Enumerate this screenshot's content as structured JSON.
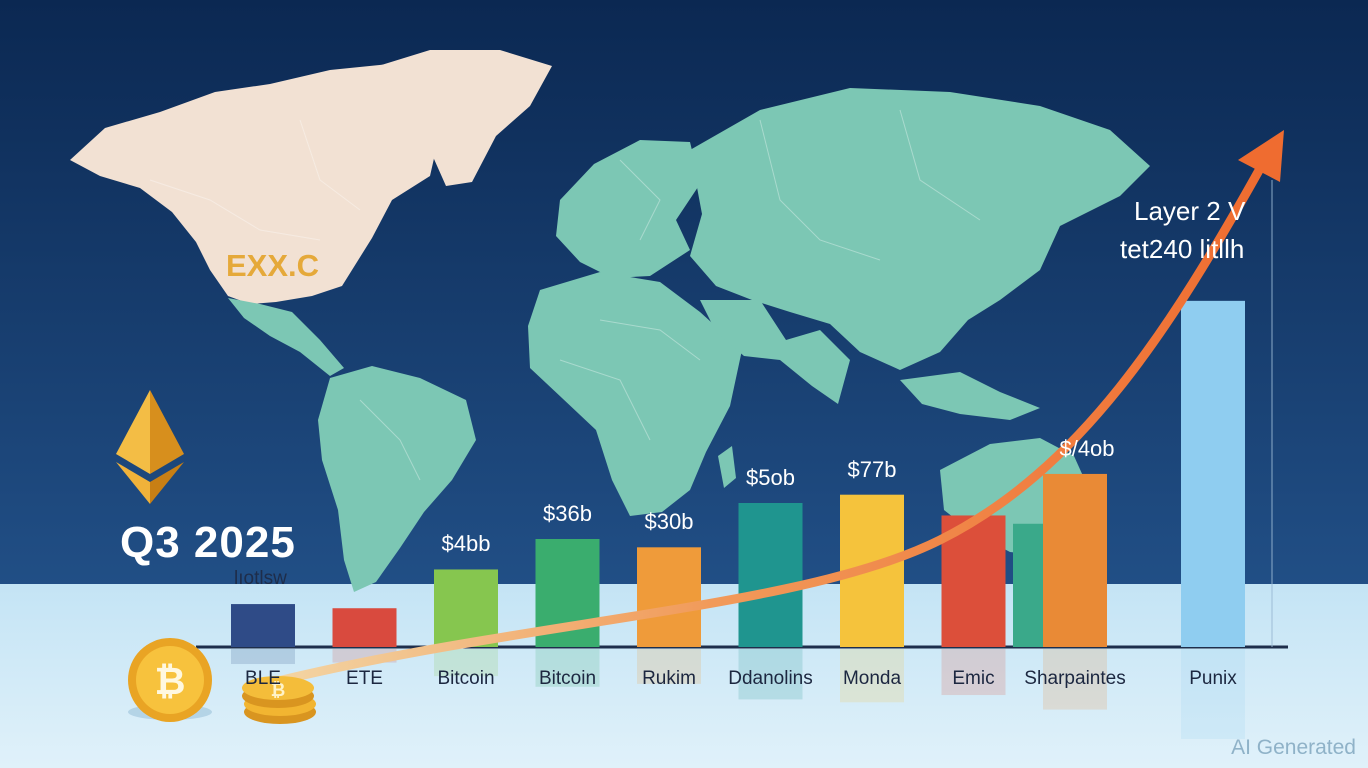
{
  "period": "Q3 2025",
  "period_sub": "lıotlsw",
  "map_label": "EXX.C",
  "annotation": [
    "Layer 2 V",
    "tet240 litllh"
  ],
  "watermark": "AI Generated",
  "colors": {
    "sky_top": "#0d2c58",
    "sky_bottom": "#204f85",
    "floor": "#cfe9f7",
    "land_americas": "#f1e0d2",
    "land_world": "#7cc7b4",
    "trend_arrow": "#f07a3c",
    "axis": "#1e2e4b",
    "coin": "#f2b531"
  },
  "icons": [
    "ethereum-icon",
    "bitcoin-coin-icon",
    "coin-stack-icon",
    "trend-arrow-icon",
    "world-map"
  ],
  "chart_data": {
    "type": "bar",
    "categories": [
      "BLE",
      "ETE",
      "Bitcoin",
      "Bitcoin",
      "Rukim",
      "Ddanolins",
      "Monda",
      "Emic",
      "Sharpaintes",
      "Punix"
    ],
    "values": [
      3.1,
      2.8,
      5.6,
      7.8,
      7.2,
      10.4,
      11.0,
      9.5,
      12.5,
      25.0
    ],
    "data_labels": [
      "",
      "",
      "$4bb",
      "$36b",
      "$30b",
      "$5ob",
      "$77b",
      "",
      "$/4ob",
      ""
    ],
    "extra_bar": {
      "category_index": 8,
      "value": 8.9
    },
    "bar_colors": [
      "#2f4b87",
      "#d94a3e",
      "#86c64f",
      "#3aad6e",
      "#ef9b3a",
      "#1f958f",
      "#f5c33c",
      "#dc4f3a",
      "#e98a36",
      "#8fcdf0"
    ],
    "ylim": [
      0,
      26
    ],
    "grid": false,
    "legend": "none",
    "trend_line": true,
    "title": "",
    "xlabel": "",
    "ylabel": ""
  }
}
